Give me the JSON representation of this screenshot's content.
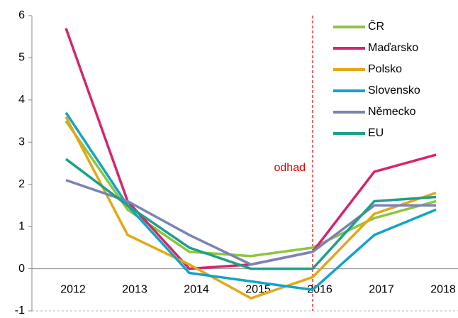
{
  "chart_data": {
    "type": "line",
    "categories": [
      "2012",
      "2013",
      "2014",
      "2015",
      "2016",
      "2017",
      "2018"
    ],
    "series": [
      {
        "name": "ČR",
        "color": "#8cc63f",
        "values": [
          3.5,
          1.4,
          0.4,
          0.3,
          0.5,
          1.2,
          1.6
        ]
      },
      {
        "name": "Maďarsko",
        "color": "#d6246e",
        "values": [
          5.7,
          1.6,
          0.0,
          0.1,
          0.4,
          2.3,
          2.7
        ]
      },
      {
        "name": "Polsko",
        "color": "#e5a714",
        "values": [
          3.6,
          0.8,
          0.1,
          -0.7,
          -0.2,
          1.3,
          1.8
        ]
      },
      {
        "name": "Slovensko",
        "color": "#14a3c7",
        "values": [
          3.7,
          1.5,
          -0.1,
          -0.3,
          -0.5,
          0.8,
          1.4
        ]
      },
      {
        "name": "Německo",
        "color": "#7b82b8",
        "values": [
          2.1,
          1.6,
          0.8,
          0.1,
          0.4,
          1.5,
          1.5
        ]
      },
      {
        "name": "EU",
        "color": "#1f9f87",
        "values": [
          2.6,
          1.5,
          0.5,
          0.0,
          0.0,
          1.6,
          1.7
        ]
      }
    ],
    "ylim": [
      -1,
      6
    ],
    "yticks": [
      -1,
      0,
      1,
      2,
      3,
      4,
      5,
      6
    ],
    "legend": "top-right",
    "annotation": {
      "text": "odhad",
      "x": "2016",
      "color": "#e00000"
    }
  }
}
